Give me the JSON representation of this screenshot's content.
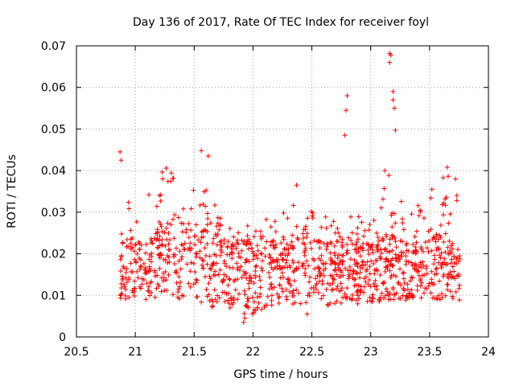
{
  "chart_data": {
    "type": "scatter",
    "title": "Day 136 of 2017, Rate Of TEC Index for receiver foyl",
    "xlabel": "GPS time / hours",
    "ylabel": "ROTI / TECUs",
    "xlim": [
      20.5,
      24
    ],
    "ylim": [
      0,
      0.07
    ],
    "xticks": [
      20.5,
      21,
      21.5,
      22,
      22.5,
      23,
      23.5,
      24
    ],
    "xtick_labels": [
      "20.5",
      "21",
      "21.5",
      "22",
      "22.5",
      "23",
      "23.5",
      "24"
    ],
    "yticks": [
      0,
      0.01,
      0.02,
      0.03,
      0.04,
      0.05,
      0.06,
      0.07
    ],
    "ytick_labels": [
      "0",
      "0.01",
      "0.02",
      "0.03",
      "0.04",
      "0.05",
      "0.06",
      "0.07"
    ],
    "grid": true,
    "marker": "plus",
    "color": "#ff0000",
    "x_range_of_data": [
      20.87,
      23.76
    ],
    "notable_points": [
      {
        "x": 20.87,
        "y": 0.0445
      },
      {
        "x": 20.88,
        "y": 0.0425
      },
      {
        "x": 21.56,
        "y": 0.0448
      },
      {
        "x": 21.62,
        "y": 0.0435
      },
      {
        "x": 22.37,
        "y": 0.0365
      },
      {
        "x": 22.78,
        "y": 0.0485
      },
      {
        "x": 22.79,
        "y": 0.0545
      },
      {
        "x": 22.8,
        "y": 0.058
      },
      {
        "x": 23.16,
        "y": 0.0682
      },
      {
        "x": 23.17,
        "y": 0.0678
      },
      {
        "x": 23.16,
        "y": 0.066
      },
      {
        "x": 23.19,
        "y": 0.059
      },
      {
        "x": 23.19,
        "y": 0.057
      },
      {
        "x": 23.2,
        "y": 0.055
      },
      {
        "x": 23.21,
        "y": 0.0497
      },
      {
        "x": 23.12,
        "y": 0.04
      },
      {
        "x": 23.65,
        "y": 0.0408
      },
      {
        "x": 21.92,
        "y": 0.0035
      },
      {
        "x": 21.93,
        "y": 0.0045
      },
      {
        "x": 22.46,
        "y": 0.0055
      },
      {
        "x": 23.72,
        "y": 0.038
      }
    ],
    "envelope": [
      {
        "x": 20.9,
        "lo": 0.008,
        "hi": 0.037,
        "mid": 0.017
      },
      {
        "x": 21.05,
        "lo": 0.008,
        "hi": 0.03,
        "mid": 0.016
      },
      {
        "x": 21.2,
        "lo": 0.008,
        "hi": 0.04,
        "mid": 0.018
      },
      {
        "x": 21.35,
        "lo": 0.008,
        "hi": 0.042,
        "mid": 0.019
      },
      {
        "x": 21.5,
        "lo": 0.007,
        "hi": 0.04,
        "mid": 0.018
      },
      {
        "x": 21.65,
        "lo": 0.006,
        "hi": 0.033,
        "mid": 0.016
      },
      {
        "x": 21.8,
        "lo": 0.006,
        "hi": 0.029,
        "mid": 0.016
      },
      {
        "x": 21.95,
        "lo": 0.004,
        "hi": 0.03,
        "mid": 0.014
      },
      {
        "x": 22.1,
        "lo": 0.006,
        "hi": 0.029,
        "mid": 0.015
      },
      {
        "x": 22.25,
        "lo": 0.007,
        "hi": 0.03,
        "mid": 0.016
      },
      {
        "x": 22.4,
        "lo": 0.007,
        "hi": 0.034,
        "mid": 0.016
      },
      {
        "x": 22.55,
        "lo": 0.007,
        "hi": 0.03,
        "mid": 0.016
      },
      {
        "x": 22.7,
        "lo": 0.006,
        "hi": 0.031,
        "mid": 0.015
      },
      {
        "x": 22.85,
        "lo": 0.007,
        "hi": 0.03,
        "mid": 0.016
      },
      {
        "x": 23.0,
        "lo": 0.007,
        "hi": 0.028,
        "mid": 0.015
      },
      {
        "x": 23.15,
        "lo": 0.008,
        "hi": 0.04,
        "mid": 0.017
      },
      {
        "x": 23.3,
        "lo": 0.008,
        "hi": 0.03,
        "mid": 0.016
      },
      {
        "x": 23.45,
        "lo": 0.008,
        "hi": 0.033,
        "mid": 0.016
      },
      {
        "x": 23.6,
        "lo": 0.008,
        "hi": 0.04,
        "mid": 0.017
      },
      {
        "x": 23.75,
        "lo": 0.008,
        "hi": 0.038,
        "mid": 0.015
      }
    ],
    "point_density_per_hour": 420
  }
}
